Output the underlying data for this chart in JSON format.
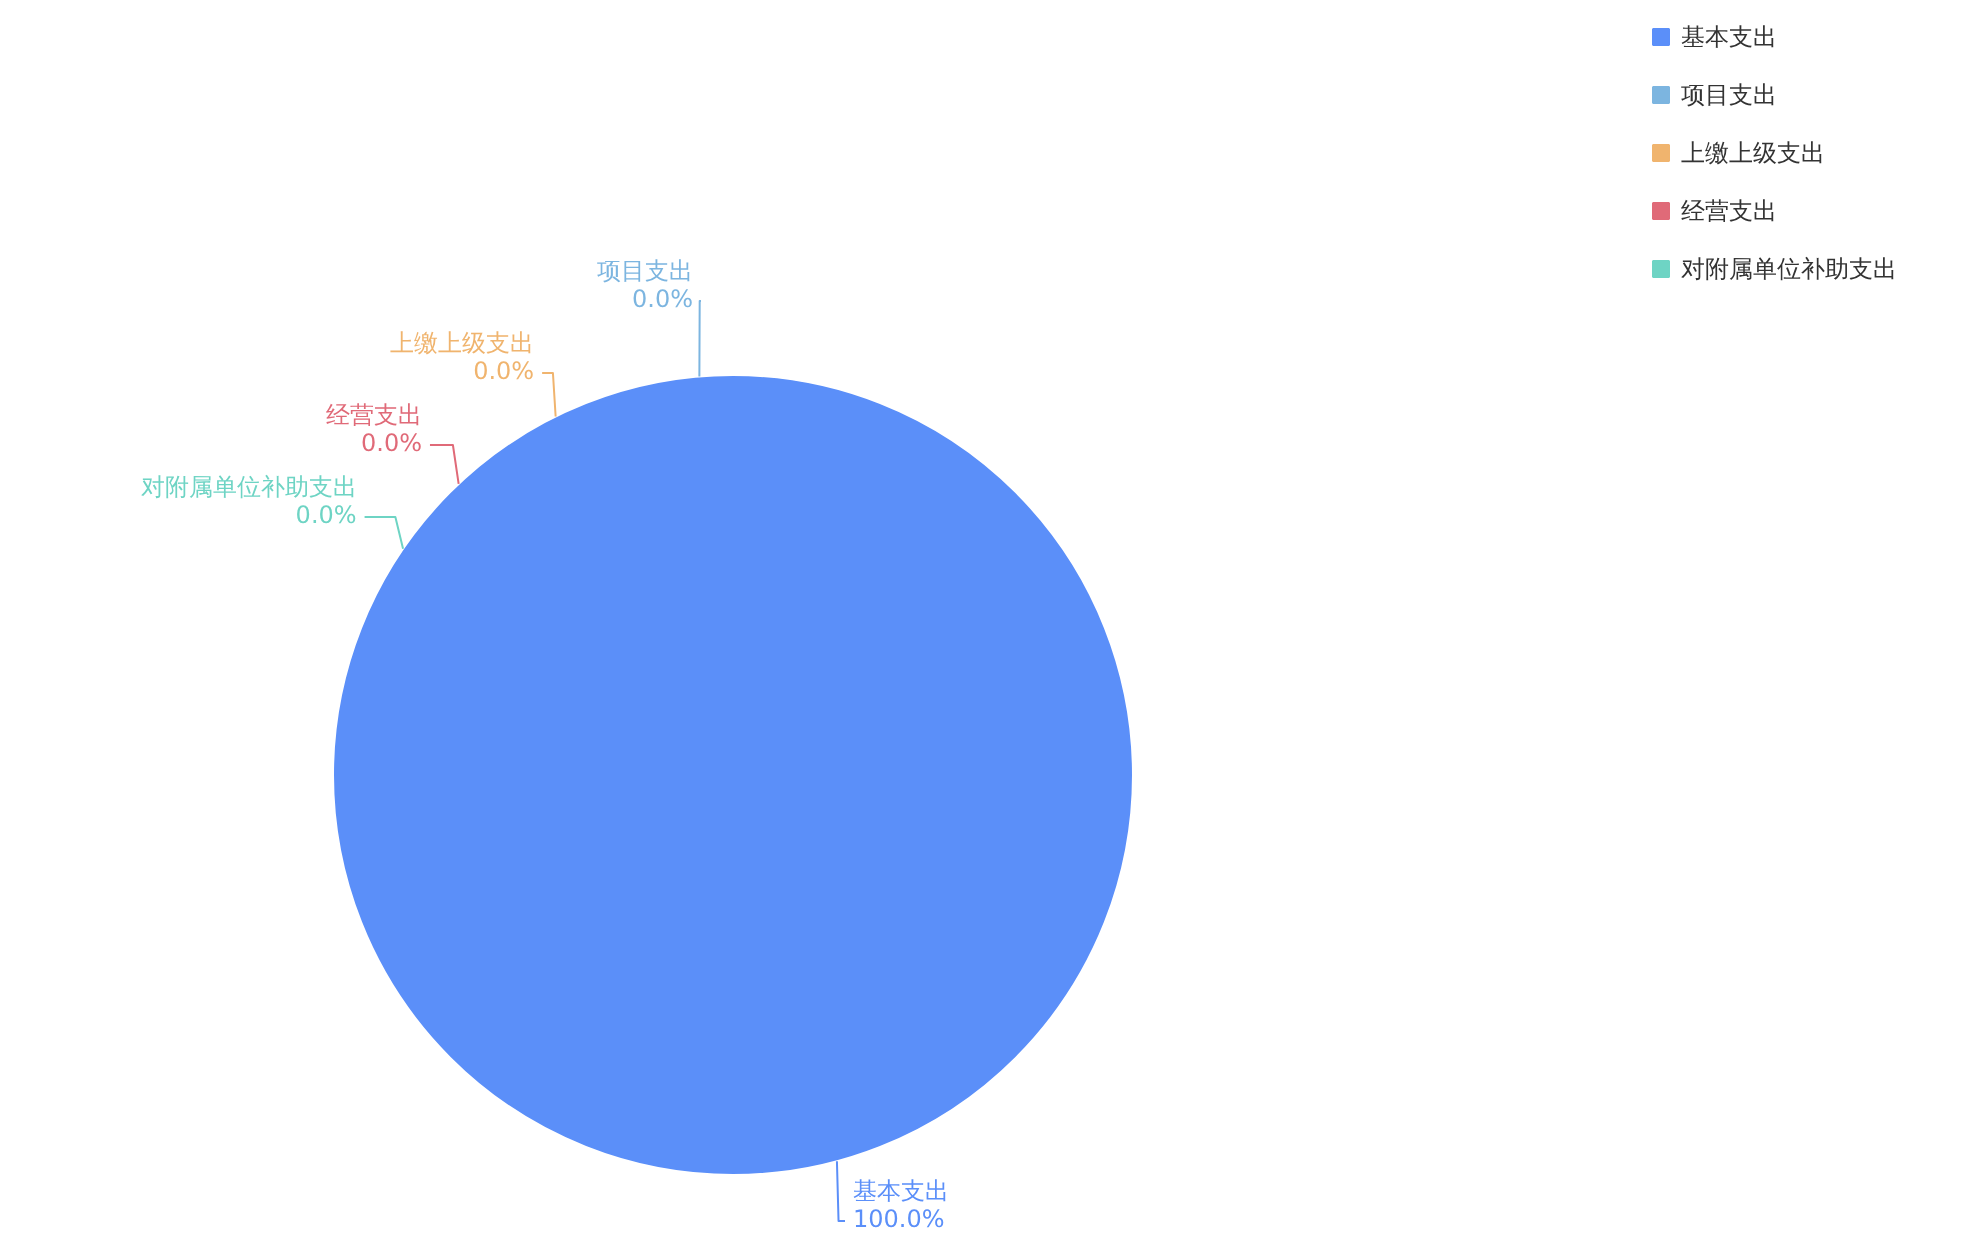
{
  "chart_data": {
    "type": "pie",
    "categories": [
      "基本支出",
      "项目支出",
      "上缴上级支出",
      "经营支出",
      "对附属单位补助支出"
    ],
    "values": [
      100,
      0,
      0,
      0,
      0
    ],
    "colors": [
      "#5b8ff9",
      "#7cb5e0",
      "#f0b46e",
      "#e06a78",
      "#6ed4c4"
    ],
    "value_labels": [
      "100.0%",
      "0.0%",
      "0.0%",
      "0.0%",
      "0.0%"
    ],
    "legend": "top right"
  }
}
